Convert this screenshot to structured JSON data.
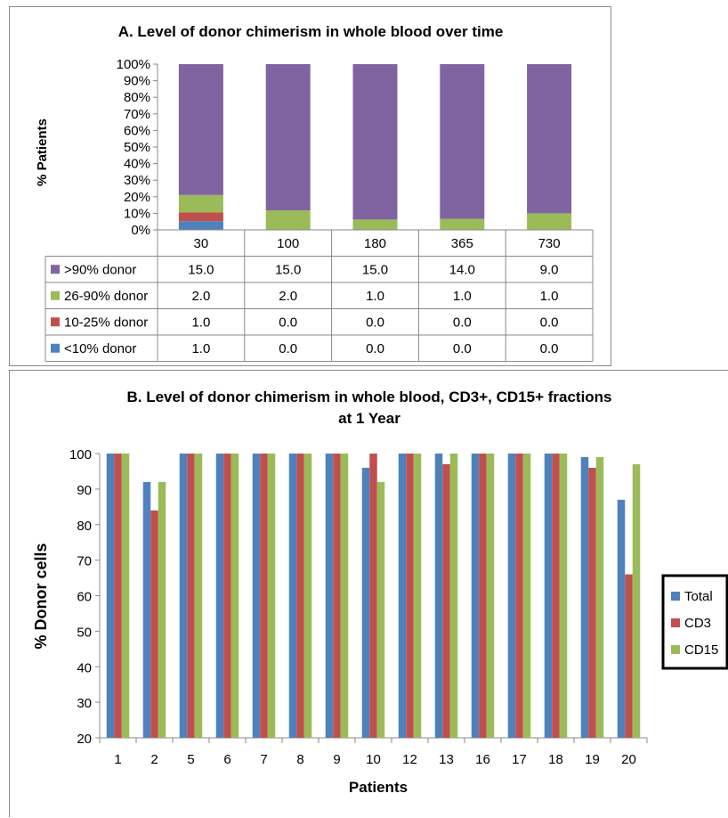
{
  "chart_data": [
    {
      "type": "bar",
      "stacked": true,
      "percent_stacked": true,
      "title": "A. Level of donor chimerism in whole blood over time",
      "ylabel": "% Patients",
      "xlabel": "",
      "ylim": [
        0,
        100
      ],
      "y_tick_labels": [
        "0%",
        "10%",
        "20%",
        "30%",
        "40%",
        "50%",
        "60%",
        "70%",
        "80%",
        "90%",
        "100%"
      ],
      "categories": [
        "30",
        "100",
        "180",
        "365",
        "730"
      ],
      "series": [
        {
          "name": ">90% donor",
          "color": "#8064a2",
          "values": [
            15.0,
            15.0,
            15.0,
            14.0,
            9.0
          ],
          "labels": [
            "15.0",
            "15.0",
            "15.0",
            "14.0",
            "9.0"
          ]
        },
        {
          "name": "26-90% donor",
          "color": "#9bbb59",
          "values": [
            2.0,
            2.0,
            1.0,
            1.0,
            1.0
          ],
          "labels": [
            "2.0",
            "2.0",
            "1.0",
            "1.0",
            "1.0"
          ]
        },
        {
          "name": "10-25% donor",
          "color": "#c0504d",
          "values": [
            1.0,
            0.0,
            0.0,
            0.0,
            0.0
          ],
          "labels": [
            "1.0",
            "0.0",
            "0.0",
            "0.0",
            "0.0"
          ]
        },
        {
          "name": "<10% donor",
          "color": "#4f81bd",
          "values": [
            1.0,
            0.0,
            0.0,
            0.0,
            0.0
          ],
          "labels": [
            "1.0",
            "0.0",
            "0.0",
            "0.0",
            "0.0"
          ]
        }
      ],
      "legend": "data table below chart",
      "grid": false
    },
    {
      "type": "bar",
      "title": "B. Level of donor chimerism in whole blood, CD3+, CD15+ fractions",
      "subtitle": "at 1 Year",
      "xlabel": "Patients",
      "ylabel": "% Donor cells",
      "ylim": [
        20,
        100
      ],
      "y_ticks": [
        20,
        30,
        40,
        50,
        60,
        70,
        80,
        90,
        100
      ],
      "categories": [
        "1",
        "2",
        "5",
        "6",
        "7",
        "8",
        "9",
        "10",
        "12",
        "13",
        "16",
        "17",
        "18",
        "19",
        "20"
      ],
      "series": [
        {
          "name": "Total",
          "color": "#4f81bd",
          "values": [
            100,
            92,
            100,
            100,
            100,
            100,
            100,
            96,
            100,
            100,
            100,
            100,
            100,
            99,
            87
          ]
        },
        {
          "name": "CD3",
          "color": "#c0504d",
          "values": [
            100,
            84,
            100,
            100,
            100,
            100,
            100,
            100,
            100,
            97,
            100,
            100,
            100,
            96,
            66
          ]
        },
        {
          "name": "CD15",
          "color": "#9bbb59",
          "values": [
            100,
            92,
            100,
            100,
            100,
            100,
            100,
            92,
            100,
            100,
            100,
            100,
            100,
            99,
            97
          ]
        }
      ],
      "legend": "right",
      "grid": false
    }
  ]
}
